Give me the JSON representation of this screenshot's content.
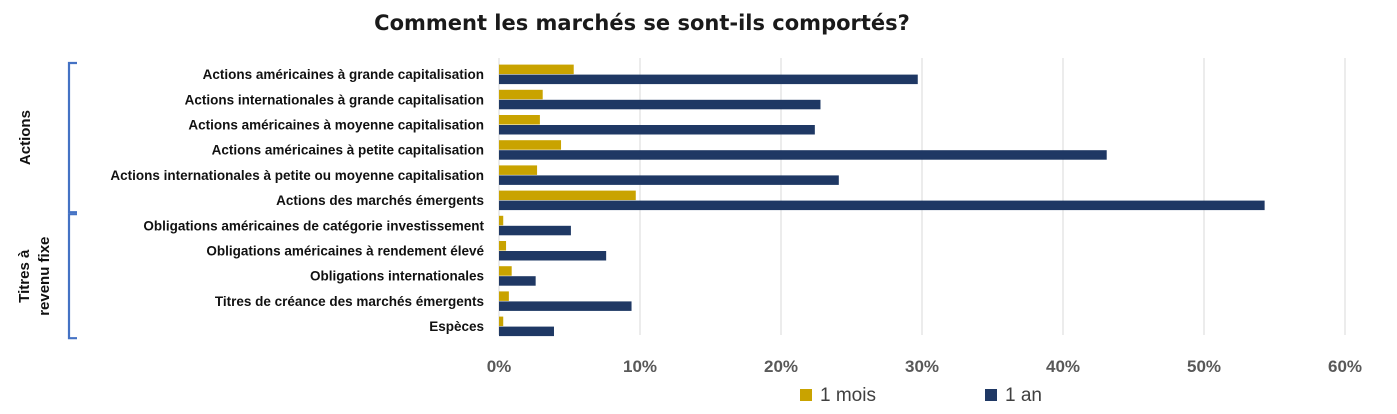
{
  "chart_data": {
    "type": "bar",
    "orientation": "horizontal",
    "title": "Comment les marchés se sont-ils comportés?",
    "categories": [
      "Actions américaines à grande capitalisation",
      "Actions internationales à grande capitalisation",
      "Actions américaines à moyenne capitalisation",
      "Actions américaines à petite capitalisation",
      "Actions internationales à petite ou moyenne capitalisation",
      "Actions des marchés émergents",
      "Obligations américaines de catégorie investissement",
      "Obligations américaines à rendement élevé",
      "Obligations internationales",
      "Titres de créance des marchés émergents",
      "Espèces"
    ],
    "groups": [
      {
        "label": "Actions",
        "start": 0,
        "end": 5
      },
      {
        "label_lines": [
          "Titres à",
          "revenu fixe"
        ],
        "start": 6,
        "end": 10
      }
    ],
    "series": [
      {
        "name": "1 mois",
        "color": "#c9a300",
        "values": [
          5.3,
          3.1,
          2.9,
          4.4,
          2.7,
          9.7,
          0.3,
          0.5,
          0.9,
          0.7,
          0.3
        ]
      },
      {
        "name": "1 an",
        "color": "#1f3864",
        "values": [
          29.7,
          22.8,
          22.4,
          43.1,
          24.1,
          54.3,
          5.1,
          7.6,
          2.6,
          9.4,
          3.9
        ]
      }
    ],
    "xlim": [
      0,
      60
    ],
    "xticks": [
      0,
      10,
      20,
      30,
      40,
      50,
      60
    ],
    "tick_suffix": "%",
    "grid": true,
    "legend_position": "bottom",
    "group_bracket_color": "#4472c4"
  }
}
